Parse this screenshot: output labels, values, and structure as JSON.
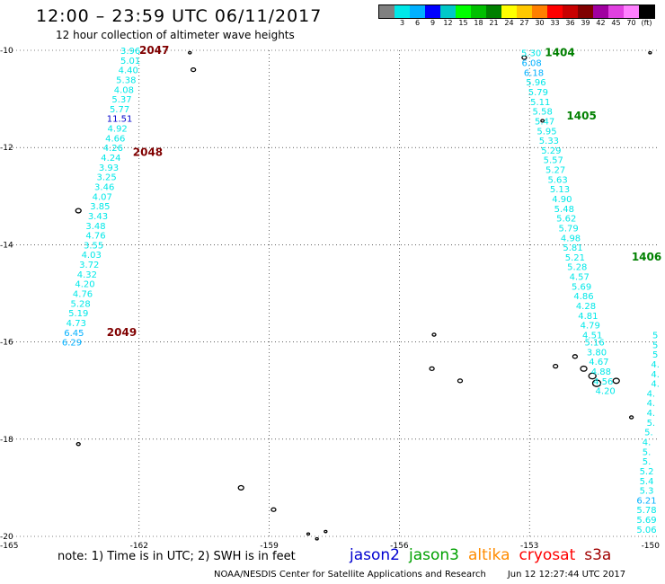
{
  "header": {
    "title": "12:00 – 23:59 UTC 06/11/2017",
    "subtitle": "12 hour collection of altimeter wave heights"
  },
  "legend": {
    "colors": [
      "#808080",
      "#00e8e8",
      "#00b0ff",
      "#0000ff",
      "#00c8c8",
      "#00ff00",
      "#00c000",
      "#008000",
      "#ffff00",
      "#ffc800",
      "#ff8000",
      "#ff0000",
      "#c80000",
      "#800000",
      "#a000a0",
      "#e040e0",
      "#ff80ff",
      "#000000"
    ],
    "labels": [
      "3",
      "6",
      "9",
      "12",
      "15",
      "18",
      "21",
      "24",
      "27",
      "30",
      "33",
      "36",
      "39",
      "42",
      "45",
      "70",
      "(ft)"
    ],
    "label_offsets": [
      1,
      3,
      5,
      7,
      9,
      11,
      13,
      15,
      17,
      19,
      21,
      23,
      25,
      27,
      29,
      31,
      33
    ]
  },
  "axes": {
    "x_ticks": [
      {
        "lon": -165,
        "label": "-165"
      },
      {
        "lon": -162,
        "label": "-162"
      },
      {
        "lon": -159,
        "label": "-159"
      },
      {
        "lon": -156,
        "label": "-156"
      },
      {
        "lon": -153,
        "label": "-153"
      },
      {
        "lon": -150,
        "label": "-150"
      }
    ],
    "y_ticks": [
      {
        "lat": -10,
        "label": "-10"
      },
      {
        "lat": -12,
        "label": "-12"
      },
      {
        "lat": -14,
        "label": "-14"
      },
      {
        "lat": -16,
        "label": "-16"
      },
      {
        "lat": -18,
        "label": "-18"
      },
      {
        "lat": -20,
        "label": "-20"
      }
    ],
    "lon_range": [
      -165,
      -150
    ],
    "lat_range": [
      -10,
      -20
    ]
  },
  "tracks": {
    "west_swh": [
      {
        "lon": -162.2,
        "lat": -10.0,
        "v": "3.96",
        "c": "#00e8e8"
      },
      {
        "lon": -162.2,
        "lat": -10.2,
        "v": "5.01",
        "c": "#00e8e8"
      },
      {
        "lon": -162.25,
        "lat": -10.4,
        "v": "4.40",
        "c": "#00e8e8"
      },
      {
        "lon": -162.3,
        "lat": -10.6,
        "v": "5.38",
        "c": "#00e8e8"
      },
      {
        "lon": -162.35,
        "lat": -10.8,
        "v": "4.08",
        "c": "#00e8e8"
      },
      {
        "lon": -162.4,
        "lat": -11.0,
        "v": "5.37",
        "c": "#00e8e8"
      },
      {
        "lon": -162.45,
        "lat": -11.2,
        "v": "5.77",
        "c": "#00e8e8"
      },
      {
        "lon": -162.45,
        "lat": -11.4,
        "v": "11.51",
        "c": "#0000cc"
      },
      {
        "lon": -162.5,
        "lat": -11.6,
        "v": "4.92",
        "c": "#00e8e8"
      },
      {
        "lon": -162.55,
        "lat": -11.8,
        "v": "4.66",
        "c": "#00e8e8"
      },
      {
        "lon": -162.6,
        "lat": -12.0,
        "v": "4.26",
        "c": "#00e8e8"
      },
      {
        "lon": -162.65,
        "lat": -12.2,
        "v": "4.24",
        "c": "#00e8e8"
      },
      {
        "lon": -162.7,
        "lat": -12.4,
        "v": "3.93",
        "c": "#00e8e8"
      },
      {
        "lon": -162.75,
        "lat": -12.6,
        "v": "3.25",
        "c": "#00e8e8"
      },
      {
        "lon": -162.8,
        "lat": -12.8,
        "v": "3.46",
        "c": "#00e8e8"
      },
      {
        "lon": -162.85,
        "lat": -13.0,
        "v": "4.07",
        "c": "#00e8e8"
      },
      {
        "lon": -162.9,
        "lat": -13.2,
        "v": "3.85",
        "c": "#00e8e8"
      },
      {
        "lon": -162.95,
        "lat": -13.4,
        "v": "3.43",
        "c": "#00e8e8"
      },
      {
        "lon": -163.0,
        "lat": -13.6,
        "v": "3.48",
        "c": "#00e8e8"
      },
      {
        "lon": -163.0,
        "lat": -13.8,
        "v": "4.76",
        "c": "#00e8e8"
      },
      {
        "lon": -163.05,
        "lat": -14.0,
        "v": "3.55",
        "c": "#00e8e8"
      },
      {
        "lon": -163.1,
        "lat": -14.2,
        "v": "4.03",
        "c": "#00e8e8"
      },
      {
        "lon": -163.15,
        "lat": -14.4,
        "v": "3.72",
        "c": "#00e8e8"
      },
      {
        "lon": -163.2,
        "lat": -14.6,
        "v": "4.32",
        "c": "#00e8e8"
      },
      {
        "lon": -163.25,
        "lat": -14.8,
        "v": "4.20",
        "c": "#00e8e8"
      },
      {
        "lon": -163.3,
        "lat": -15.0,
        "v": "4.76",
        "c": "#00e8e8"
      },
      {
        "lon": -163.35,
        "lat": -15.2,
        "v": "5.28",
        "c": "#00e8e8"
      },
      {
        "lon": -163.4,
        "lat": -15.4,
        "v": "5.19",
        "c": "#00e8e8"
      },
      {
        "lon": -163.45,
        "lat": -15.6,
        "v": "4.73",
        "c": "#00e8e8"
      },
      {
        "lon": -163.5,
        "lat": -15.8,
        "v": "6.45",
        "c": "#00b0ff"
      },
      {
        "lon": -163.55,
        "lat": -16.0,
        "v": "6.29",
        "c": "#00b0ff"
      }
    ],
    "east_swh": [
      {
        "lon": -152.96,
        "lat": -10.05,
        "v": "5.30",
        "c": "#00e8e8"
      },
      {
        "lon": -152.95,
        "lat": -10.25,
        "v": "6.08",
        "c": "#00b0ff"
      },
      {
        "lon": -152.9,
        "lat": -10.45,
        "v": "6.18",
        "c": "#00b0ff"
      },
      {
        "lon": -152.85,
        "lat": -10.65,
        "v": "5.96",
        "c": "#00e8e8"
      },
      {
        "lon": -152.8,
        "lat": -10.85,
        "v": "5.79",
        "c": "#00e8e8"
      },
      {
        "lon": -152.75,
        "lat": -11.05,
        "v": "5.11",
        "c": "#00e8e8"
      },
      {
        "lon": -152.7,
        "lat": -11.25,
        "v": "5.58",
        "c": "#00e8e8"
      },
      {
        "lon": -152.65,
        "lat": -11.45,
        "v": "5.47",
        "c": "#00e8e8"
      },
      {
        "lon": -152.6,
        "lat": -11.65,
        "v": "5.95",
        "c": "#00e8e8"
      },
      {
        "lon": -152.55,
        "lat": -11.85,
        "v": "5.33",
        "c": "#00e8e8"
      },
      {
        "lon": -152.5,
        "lat": -12.05,
        "v": "5.29",
        "c": "#00e8e8"
      },
      {
        "lon": -152.45,
        "lat": -12.25,
        "v": "5.57",
        "c": "#00e8e8"
      },
      {
        "lon": -152.4,
        "lat": -12.45,
        "v": "5.27",
        "c": "#00e8e8"
      },
      {
        "lon": -152.35,
        "lat": -12.65,
        "v": "5.63",
        "c": "#00e8e8"
      },
      {
        "lon": -152.3,
        "lat": -12.85,
        "v": "5.13",
        "c": "#00e8e8"
      },
      {
        "lon": -152.25,
        "lat": -13.05,
        "v": "4.90",
        "c": "#00e8e8"
      },
      {
        "lon": -152.2,
        "lat": -13.25,
        "v": "5.48",
        "c": "#00e8e8"
      },
      {
        "lon": -152.15,
        "lat": -13.45,
        "v": "5.62",
        "c": "#00e8e8"
      },
      {
        "lon": -152.1,
        "lat": -13.65,
        "v": "5.79",
        "c": "#00e8e8"
      },
      {
        "lon": -152.05,
        "lat": -13.85,
        "v": "4.98",
        "c": "#00e8e8"
      },
      {
        "lon": -152.0,
        "lat": -14.05,
        "v": "5.81",
        "c": "#00e8e8"
      },
      {
        "lon": -151.95,
        "lat": -14.25,
        "v": "5.21",
        "c": "#00e8e8"
      },
      {
        "lon": -151.9,
        "lat": -14.45,
        "v": "5.28",
        "c": "#00e8e8"
      },
      {
        "lon": -151.85,
        "lat": -14.65,
        "v": "4.57",
        "c": "#00e8e8"
      },
      {
        "lon": -151.8,
        "lat": -14.85,
        "v": "5.69",
        "c": "#00e8e8"
      },
      {
        "lon": -151.75,
        "lat": -15.05,
        "v": "4.86",
        "c": "#00e8e8"
      },
      {
        "lon": -151.7,
        "lat": -15.25,
        "v": "4.28",
        "c": "#00e8e8"
      },
      {
        "lon": -151.65,
        "lat": -15.45,
        "v": "4.81",
        "c": "#00e8e8"
      },
      {
        "lon": -151.6,
        "lat": -15.65,
        "v": "4.79",
        "c": "#00e8e8"
      },
      {
        "lon": -151.55,
        "lat": -15.85,
        "v": "4.51",
        "c": "#00e8e8"
      },
      {
        "lon": -151.5,
        "lat": -16.0,
        "v": "5.16",
        "c": "#00e8e8"
      },
      {
        "lon": -151.45,
        "lat": -16.2,
        "v": "3.80",
        "c": "#00e8e8"
      },
      {
        "lon": -151.4,
        "lat": -16.4,
        "v": "4.67",
        "c": "#00e8e8"
      },
      {
        "lon": -151.35,
        "lat": -16.6,
        "v": "4.88",
        "c": "#00e8e8"
      },
      {
        "lon": -151.3,
        "lat": -16.8,
        "v": "4.56",
        "c": "#00e8e8"
      },
      {
        "lon": -151.25,
        "lat": -17.0,
        "v": "4.20",
        "c": "#00e8e8"
      }
    ],
    "east_edge": [
      {
        "lon": -150.1,
        "lat": -15.85,
        "v": "5",
        "c": "#00e8e8"
      },
      {
        "lon": -150.1,
        "lat": -16.05,
        "v": "5",
        "c": "#00e8e8"
      },
      {
        "lon": -150.1,
        "lat": -16.25,
        "v": "5",
        "c": "#00e8e8"
      },
      {
        "lon": -150.1,
        "lat": -16.45,
        "v": "4.",
        "c": "#00e8e8"
      },
      {
        "lon": -150.1,
        "lat": -16.65,
        "v": "4.",
        "c": "#00e8e8"
      },
      {
        "lon": -150.1,
        "lat": -16.85,
        "v": "4.",
        "c": "#00e8e8"
      },
      {
        "lon": -150.2,
        "lat": -17.05,
        "v": "4.",
        "c": "#00e8e8"
      },
      {
        "lon": -150.2,
        "lat": -17.25,
        "v": "4.",
        "c": "#00e8e8"
      },
      {
        "lon": -150.2,
        "lat": -17.45,
        "v": "4.",
        "c": "#00e8e8"
      },
      {
        "lon": -150.2,
        "lat": -17.65,
        "v": "5.",
        "c": "#00e8e8"
      },
      {
        "lon": -150.25,
        "lat": -17.85,
        "v": "5.",
        "c": "#00e8e8"
      },
      {
        "lon": -150.3,
        "lat": -18.05,
        "v": "4.",
        "c": "#00e8e8"
      },
      {
        "lon": -150.3,
        "lat": -18.25,
        "v": "5.",
        "c": "#00e8e8"
      },
      {
        "lon": -150.3,
        "lat": -18.45,
        "v": "5.",
        "c": "#00e8e8"
      },
      {
        "lon": -150.3,
        "lat": -18.65,
        "v": "5.2",
        "c": "#00e8e8"
      },
      {
        "lon": -150.3,
        "lat": -18.85,
        "v": "5.4",
        "c": "#00e8e8"
      },
      {
        "lon": -150.3,
        "lat": -19.05,
        "v": "5.3",
        "c": "#00e8e8"
      },
      {
        "lon": -150.3,
        "lat": -19.25,
        "v": "6.21",
        "c": "#00b0ff"
      },
      {
        "lon": -150.3,
        "lat": -19.45,
        "v": "5.78",
        "c": "#00e8e8"
      },
      {
        "lon": -150.3,
        "lat": -19.65,
        "v": "5.69",
        "c": "#00e8e8"
      },
      {
        "lon": -150.3,
        "lat": -19.85,
        "v": "5.06",
        "c": "#00e8e8"
      }
    ]
  },
  "time_labels": [
    {
      "lon": -161.65,
      "lat": -10.0,
      "v": "2047",
      "c": "#800000"
    },
    {
      "lon": -161.8,
      "lat": -12.1,
      "v": "2048",
      "c": "#800000"
    },
    {
      "lon": -162.4,
      "lat": -15.8,
      "v": "2049",
      "c": "#800000"
    },
    {
      "lon": -152.3,
      "lat": -10.05,
      "v": "1404",
      "c": "#008000"
    },
    {
      "lon": -151.8,
      "lat": -11.35,
      "v": "1405",
      "c": "#008000"
    },
    {
      "lon": -150.3,
      "lat": -14.25,
      "v": "1406",
      "c": "#008000"
    }
  ],
  "islands": [
    {
      "lon": -160.83,
      "lat": -10.05,
      "r": 1.6
    },
    {
      "lon": -160.75,
      "lat": -10.4,
      "r": 2.5
    },
    {
      "lon": -163.4,
      "lat": -13.3,
      "r": 3.0
    },
    {
      "lon": -163.4,
      "lat": -18.1,
      "r": 2.0
    },
    {
      "lon": -159.65,
      "lat": -19.0,
      "r": 3.0
    },
    {
      "lon": -158.9,
      "lat": -19.45,
      "r": 2.5
    },
    {
      "lon": -158.1,
      "lat": -19.95,
      "r": 1.5
    },
    {
      "lon": -157.9,
      "lat": -20.05,
      "r": 1.5
    },
    {
      "lon": -157.7,
      "lat": -19.9,
      "r": 1.5
    },
    {
      "lon": -155.2,
      "lat": -15.85,
      "r": 2.0
    },
    {
      "lon": -155.25,
      "lat": -16.55,
      "r": 2.5
    },
    {
      "lon": -154.6,
      "lat": -16.8,
      "r": 2.5
    },
    {
      "lon": -152.4,
      "lat": -16.5,
      "r": 2.5
    },
    {
      "lon": -151.95,
      "lat": -16.3,
      "r": 2.5
    },
    {
      "lon": -151.75,
      "lat": -16.55,
      "r": 3.5
    },
    {
      "lon": -151.55,
      "lat": -16.7,
      "r": 4.0
    },
    {
      "lon": -151.45,
      "lat": -16.85,
      "r": 4.5
    },
    {
      "lon": -151.0,
      "lat": -16.8,
      "r": 3.5
    },
    {
      "lon": -150.65,
      "lat": -17.55,
      "r": 2.0
    },
    {
      "lon": -153.12,
      "lat": -10.15,
      "r": 2.5
    },
    {
      "lon": -152.7,
      "lat": -11.45,
      "r": 1.8
    },
    {
      "lon": -150.22,
      "lat": -10.05,
      "r": 1.5
    }
  ],
  "footer": {
    "note": "note: 1) Time is in UTC; 2) SWH is in feet",
    "missions": [
      {
        "name": "jason2",
        "color": "#0000d0"
      },
      {
        "name": "jason3",
        "color": "#00a000"
      },
      {
        "name": "altika",
        "color": "#ff8c00"
      },
      {
        "name": "cryosat",
        "color": "#ff0000"
      },
      {
        "name": "s3a",
        "color": "#a00000"
      }
    ],
    "credit": "NOAA/NESDIS Center for Satellite Applications and Research",
    "timestamp": "Jun 12 12:27:44 UTC 2017"
  }
}
